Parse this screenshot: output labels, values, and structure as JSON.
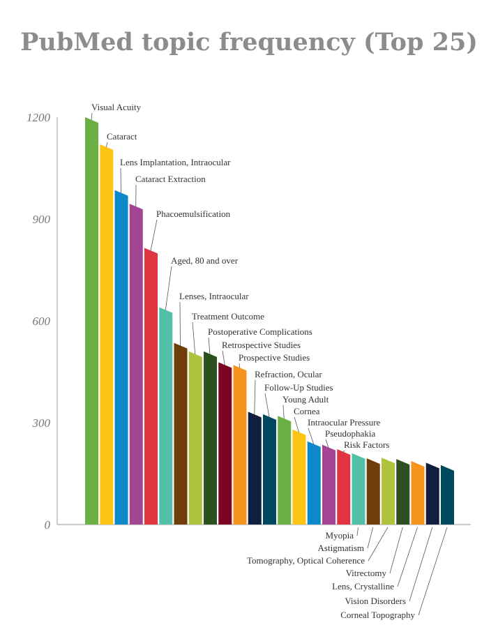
{
  "chart_data": {
    "type": "bar",
    "title": "PubMed topic frequency (Top 25)",
    "categories": [
      "Visual Acuity",
      "Cataract",
      "Lens Implantation, Intraocular",
      "Cataract Extraction",
      "Phacoemulsification",
      "Aged, 80 and over",
      "Lenses, Intraocular",
      "Treatment Outcome",
      "Postoperative Complications",
      "Retrospective Studies",
      "Prospective Studies",
      "Refraction, Ocular",
      "Follow-Up Studies",
      "Young Adult",
      "Cornea",
      "Intraocular Pressure",
      "Pseudophakia",
      "Risk Factors",
      "Myopia",
      "Astigmatism",
      "Tomography, Optical Coherence",
      "Vitrectomy",
      "Lens, Crystalline",
      "Vision Disorders",
      "Corneal Topography"
    ],
    "values": [
      1200,
      1120,
      985,
      945,
      815,
      640,
      535,
      510,
      510,
      478,
      470,
      332,
      325,
      320,
      280,
      245,
      235,
      222,
      210,
      195,
      197,
      193,
      187,
      182,
      175
    ],
    "colors": [
      "#6ab045",
      "#fdc414",
      "#0f88c9",
      "#a44593",
      "#e03540",
      "#52c0a7",
      "#6e3d0a",
      "#afc33d",
      "#2e5020",
      "#7c0622",
      "#f7941d",
      "#0f1f3d",
      "#00485e",
      "#6ab045",
      "#fdc414",
      "#0f88c9",
      "#a44593",
      "#e03540",
      "#52c0a7",
      "#6e3d0a",
      "#afc33d",
      "#2e5020",
      "#f7941d",
      "#0f1f3d",
      "#00485e"
    ],
    "xlabel": "",
    "ylabel": "",
    "yticks": [
      0,
      300,
      600,
      900,
      1200
    ],
    "ylim": [
      0,
      1200
    ],
    "grid": false,
    "legend": "none"
  }
}
